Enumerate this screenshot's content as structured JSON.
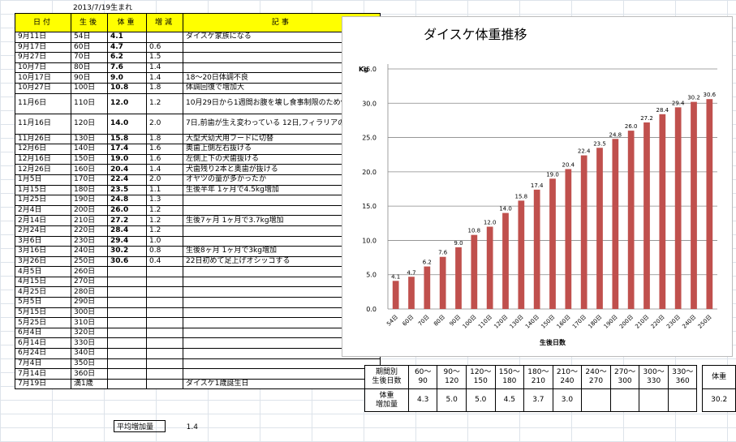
{
  "birth_note": "2013/7/19生まれ",
  "headers": {
    "date": "日付",
    "days": "生後",
    "weight": "体重",
    "increase": "増減",
    "note": "記事"
  },
  "rows": [
    {
      "date": "9月11日",
      "days": "54日",
      "weight": "4.1",
      "inc": "",
      "note": "ダイスケ家族になる"
    },
    {
      "date": "9月17日",
      "days": "60日",
      "weight": "4.7",
      "inc": "0.6",
      "note": ""
    },
    {
      "date": "9月27日",
      "days": "70日",
      "weight": "6.2",
      "inc": "1.5",
      "note": ""
    },
    {
      "date": "10月7日",
      "days": "80日",
      "weight": "7.6",
      "inc": "1.4",
      "note": ""
    },
    {
      "date": "10月17日",
      "days": "90日",
      "weight": "9.0",
      "inc": "1.4",
      "note": "18～20日体調不良"
    },
    {
      "date": "10月27日",
      "days": "100日",
      "weight": "10.8",
      "inc": "1.8",
      "note": "体調回復で増加大"
    },
    {
      "date": "11月6日",
      "days": "110日",
      "weight": "12.0",
      "inc": "1.2",
      "note": "10月29日から1週間お腹を壊し食事制限のため体重増加少"
    },
    {
      "date": "11月16日",
      "days": "120日",
      "weight": "14.0",
      "inc": "2.0",
      "note": "7日,前歯が生え変わっている 12日,フィラリアの薬投与"
    },
    {
      "date": "11月26日",
      "days": "130日",
      "weight": "15.8",
      "inc": "1.8",
      "note": "大型犬幼犬用フードに切替"
    },
    {
      "date": "12月6日",
      "days": "140日",
      "weight": "17.4",
      "inc": "1.6",
      "note": "奥歯上側左右抜ける"
    },
    {
      "date": "12月16日",
      "days": "150日",
      "weight": "19.0",
      "inc": "1.6",
      "note": "左側上下の犬歯抜ける"
    },
    {
      "date": "12月26日",
      "days": "160日",
      "weight": "20.4",
      "inc": "1.4",
      "note": "犬歯残り2本と奥歯が抜ける"
    },
    {
      "date": "1月5日",
      "days": "170日",
      "weight": "22.4",
      "inc": "2.0",
      "note": "オヤツの量が多かったか"
    },
    {
      "date": "1月15日",
      "days": "180日",
      "weight": "23.5",
      "inc": "1.1",
      "note": "生後半年 1ヶ月で4.5kg増加"
    },
    {
      "date": "1月25日",
      "days": "190日",
      "weight": "24.8",
      "inc": "1.3",
      "note": ""
    },
    {
      "date": "2月4日",
      "days": "200日",
      "weight": "26.0",
      "inc": "1.2",
      "note": ""
    },
    {
      "date": "2月14日",
      "days": "210日",
      "weight": "27.2",
      "inc": "1.2",
      "note": "生後7ヶ月 1ヶ月で3.7kg増加"
    },
    {
      "date": "2月24日",
      "days": "220日",
      "weight": "28.4",
      "inc": "1.2",
      "note": ""
    },
    {
      "date": "3月6日",
      "days": "230日",
      "weight": "29.4",
      "inc": "1.0",
      "note": ""
    },
    {
      "date": "3月16日",
      "days": "240日",
      "weight": "30.2",
      "inc": "0.8",
      "note": "生後8ヶ月 1ヶ月で3kg増加"
    },
    {
      "date": "3月26日",
      "days": "250日",
      "weight": "30.6",
      "inc": "0.4",
      "note": "22日初めて足上げオシッコする"
    },
    {
      "date": "4月5日",
      "days": "260日",
      "weight": "",
      "inc": "",
      "note": ""
    },
    {
      "date": "4月15日",
      "days": "270日",
      "weight": "",
      "inc": "",
      "note": ""
    },
    {
      "date": "4月25日",
      "days": "280日",
      "weight": "",
      "inc": "",
      "note": ""
    },
    {
      "date": "5月5日",
      "days": "290日",
      "weight": "",
      "inc": "",
      "note": ""
    },
    {
      "date": "5月15日",
      "days": "300日",
      "weight": "",
      "inc": "",
      "note": ""
    },
    {
      "date": "5月25日",
      "days": "310日",
      "weight": "",
      "inc": "",
      "note": ""
    },
    {
      "date": "6月4日",
      "days": "320日",
      "weight": "",
      "inc": "",
      "note": ""
    },
    {
      "date": "6月14日",
      "days": "330日",
      "weight": "",
      "inc": "",
      "note": ""
    },
    {
      "date": "6月24日",
      "days": "340日",
      "weight": "",
      "inc": "",
      "note": ""
    },
    {
      "date": "7月4日",
      "days": "350日",
      "weight": "",
      "inc": "",
      "note": ""
    },
    {
      "date": "7月14日",
      "days": "360日",
      "weight": "",
      "inc": "",
      "note": ""
    },
    {
      "date": "7月19日",
      "days": "満1歳",
      "weight": "",
      "inc": "",
      "note": "ダイスケ1歳誕生日"
    }
  ],
  "average": {
    "label": "平均増加量",
    "value": "1.4"
  },
  "chart_data": {
    "type": "bar",
    "title": "ダイスケ体重推移",
    "ylabel": "Kg",
    "xlabel": "生後日数",
    "ylim": [
      0,
      35
    ],
    "yticks": [
      "0.0",
      "5.0",
      "10.0",
      "15.0",
      "20.0",
      "25.0",
      "30.0",
      "35.0"
    ],
    "grid": true,
    "bar_color": "#c0504d",
    "categories": [
      "54日",
      "60日",
      "70日",
      "80日",
      "90日",
      "100日",
      "110日",
      "120日",
      "130日",
      "140日",
      "150日",
      "160日",
      "170日",
      "180日",
      "190日",
      "200日",
      "210日",
      "220日",
      "230日",
      "240日",
      "250日"
    ],
    "values": [
      4.1,
      4.7,
      6.2,
      7.6,
      9.0,
      10.8,
      12.0,
      14.0,
      15.8,
      17.4,
      19.0,
      20.4,
      22.4,
      23.5,
      24.8,
      26.0,
      27.2,
      28.4,
      29.4,
      30.2,
      30.6
    ],
    "labels": [
      "4.1",
      "4.7",
      "6.2",
      "7.6",
      "9.0",
      "10.8",
      "12.0",
      "14.0",
      "15.8",
      "17.4",
      "19.0",
      "20.4",
      "22.4",
      "23.5",
      "24.8",
      "26.0",
      "27.2",
      "28.4",
      "29.4",
      "30.2",
      "30.6"
    ]
  },
  "summary": {
    "header_label": "期間別\n生後日数",
    "periods": [
      "60～\n90",
      "90～\n120",
      "120～\n150",
      "150～\n180",
      "180～\n210",
      "210～\n240",
      "240～\n270",
      "270～\n300",
      "300～\n330",
      "330～\n360"
    ],
    "row_label": "体重\n増加量",
    "values": [
      "4.3",
      "5.0",
      "5.0",
      "4.5",
      "3.7",
      "3.0",
      "",
      "",
      "",
      ""
    ],
    "weight_label": "体重",
    "weight_value": "30.2"
  }
}
